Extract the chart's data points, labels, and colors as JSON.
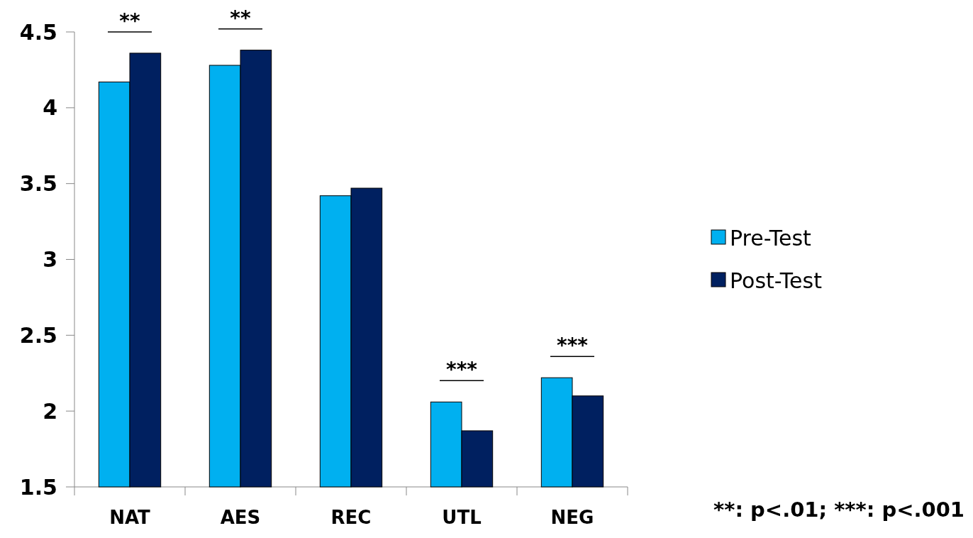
{
  "chart_data": {
    "type": "bar",
    "categories": [
      "NAT",
      "AES",
      "REC",
      "UTL",
      "NEG"
    ],
    "series": [
      {
        "name": "Pre-Test",
        "color": "#00b0f0",
        "values": [
          4.17,
          4.28,
          3.42,
          2.06,
          2.22
        ]
      },
      {
        "name": "Post-Test",
        "color": "#002060",
        "values": [
          4.36,
          4.38,
          3.47,
          1.87,
          2.1
        ]
      }
    ],
    "ylim": [
      1.5,
      4.5
    ],
    "yticks": [
      1.5,
      2,
      2.5,
      3,
      3.5,
      4,
      4.5
    ],
    "grid": false,
    "legend": "right",
    "annotations": [
      "**",
      "**",
      "***",
      "***",
      "**: p<.01; ***: p<.001"
    ]
  }
}
